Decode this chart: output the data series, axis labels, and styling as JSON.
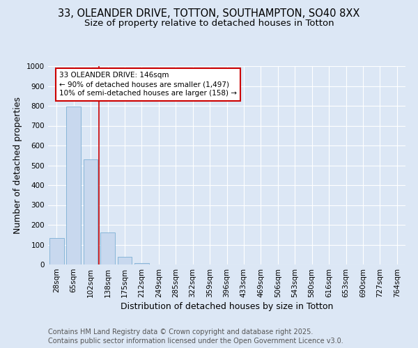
{
  "title_line1": "33, OLEANDER DRIVE, TOTTON, SOUTHAMPTON, SO40 8XX",
  "title_line2": "Size of property relative to detached houses in Totton",
  "xlabel": "Distribution of detached houses by size in Totton",
  "ylabel": "Number of detached properties",
  "bar_color": "#c8d8ee",
  "bar_edge_color": "#7bafd4",
  "background_color": "#dce7f5",
  "plot_bg_color": "#dce7f5",
  "grid_color": "#ffffff",
  "categories": [
    "28sqm",
    "65sqm",
    "102sqm",
    "138sqm",
    "175sqm",
    "212sqm",
    "249sqm",
    "285sqm",
    "322sqm",
    "359sqm",
    "396sqm",
    "433sqm",
    "469sqm",
    "506sqm",
    "543sqm",
    "580sqm",
    "616sqm",
    "653sqm",
    "690sqm",
    "727sqm",
    "764sqm"
  ],
  "values": [
    135,
    795,
    530,
    163,
    40,
    8,
    0,
    0,
    0,
    0,
    0,
    0,
    0,
    0,
    0,
    0,
    0,
    0,
    0,
    0,
    0
  ],
  "ylim": [
    0,
    1000
  ],
  "yticks": [
    0,
    100,
    200,
    300,
    400,
    500,
    600,
    700,
    800,
    900,
    1000
  ],
  "property_line_color": "#cc0000",
  "annotation_text": "33 OLEANDER DRIVE: 146sqm\n← 90% of detached houses are smaller (1,497)\n10% of semi-detached houses are larger (158) →",
  "annotation_box_color": "#cc0000",
  "footnote": "Contains HM Land Registry data © Crown copyright and database right 2025.\nContains public sector information licensed under the Open Government Licence v3.0.",
  "title_fontsize": 10.5,
  "subtitle_fontsize": 9.5,
  "axis_label_fontsize": 9,
  "tick_fontsize": 7.5,
  "annotation_fontsize": 7.5,
  "footnote_fontsize": 7
}
